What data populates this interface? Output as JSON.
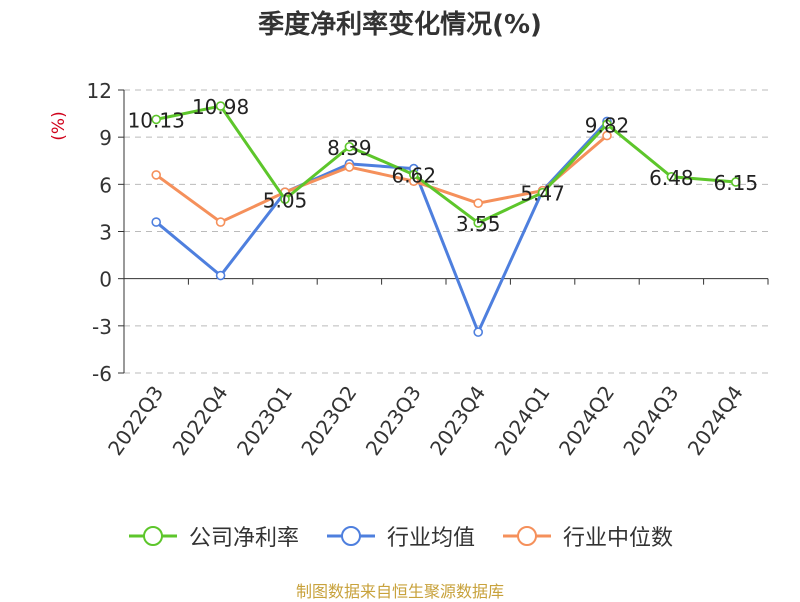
{
  "chart_data": {
    "type": "line",
    "title": "季度净利率变化情况(%)",
    "ylabel": "(%)",
    "xlabel": "",
    "categories": [
      "2022Q3",
      "2022Q4",
      "2023Q1",
      "2023Q2",
      "2023Q3",
      "2023Q4",
      "2024Q1",
      "2024Q2",
      "2024Q3",
      "2024Q4"
    ],
    "ylim": [
      -6,
      12
    ],
    "yticks": [
      -6,
      -3,
      0,
      3,
      6,
      9,
      12
    ],
    "grid": true,
    "legend_position": "bottom",
    "series": [
      {
        "name": "公司净利率",
        "color": "#5dc62b",
        "values": [
          10.13,
          10.98,
          5.05,
          8.39,
          6.62,
          3.55,
          5.47,
          9.82,
          6.48,
          6.15
        ],
        "labels": [
          "10.13",
          "10.98",
          "5.05",
          "8.39",
          "6.62",
          "3.55",
          "5.47",
          "9.82",
          "6.48",
          "6.15"
        ]
      },
      {
        "name": "行业均值",
        "color": "#4e7fde",
        "values": [
          3.6,
          0.2,
          5.5,
          7.3,
          7.0,
          -3.4,
          5.6,
          10.0,
          null,
          null
        ]
      },
      {
        "name": "行业中位数",
        "color": "#f5905b",
        "values": [
          6.6,
          3.6,
          5.5,
          7.1,
          6.2,
          4.8,
          5.6,
          9.1,
          null,
          null
        ]
      }
    ]
  },
  "footer": {
    "source": "制图数据来自恒生聚源数据库"
  }
}
